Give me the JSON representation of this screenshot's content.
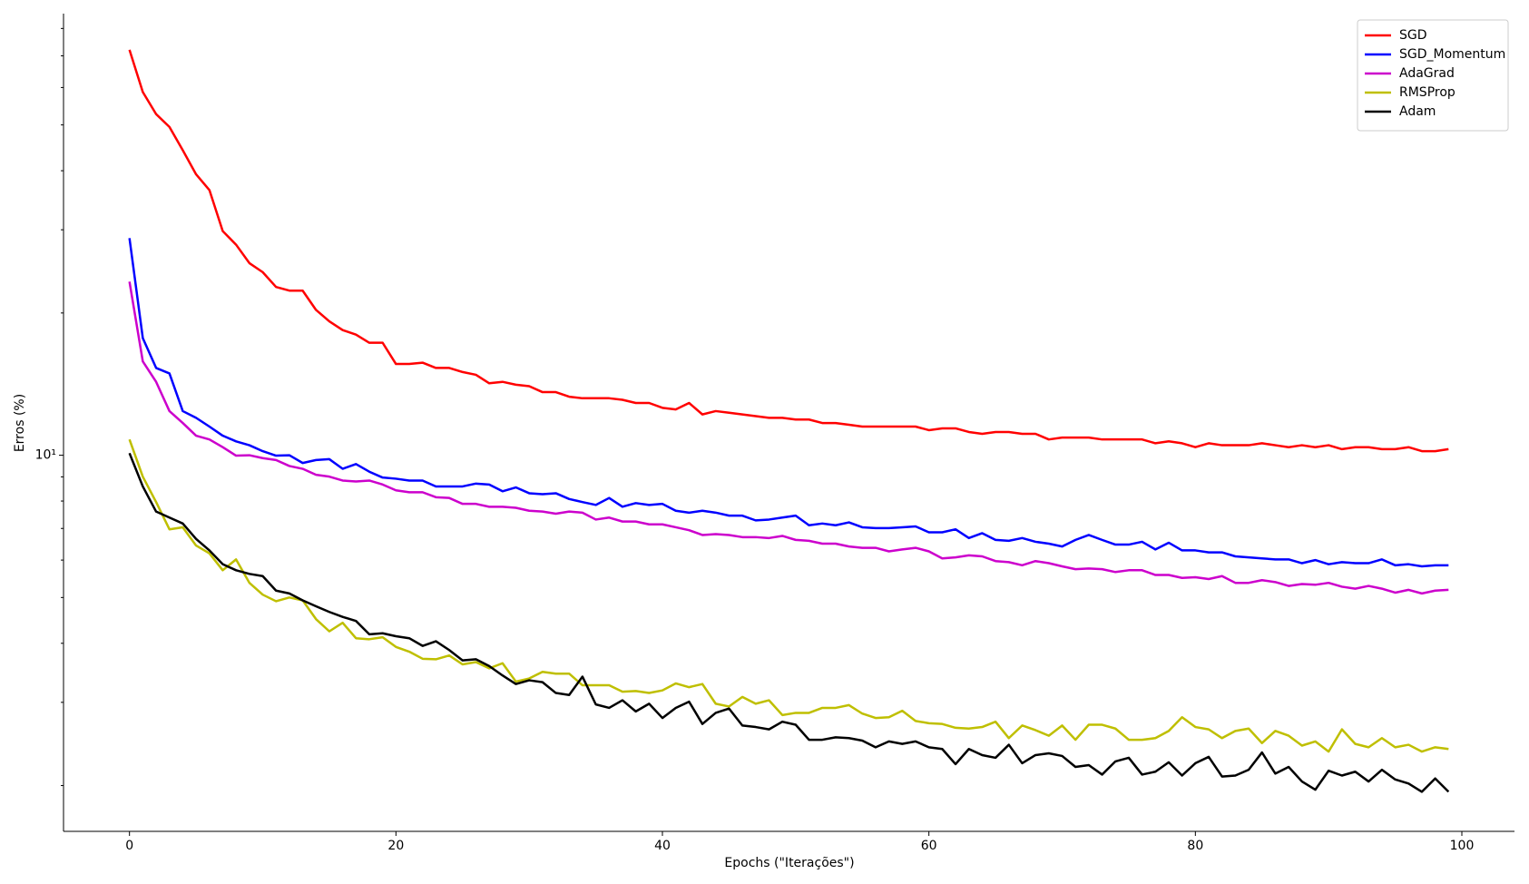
{
  "chart_data": {
    "type": "line",
    "xlabel": "Epochs (\"Iterações\")",
    "ylabel": "Erros (%)",
    "log_y": true,
    "legend": "upper right",
    "xlim": [
      -4.95,
      103.95
    ],
    "xticks": [
      0,
      20,
      40,
      60,
      80,
      100
    ],
    "ylim": [
      1.6,
      86
    ],
    "yticks": [
      {
        "value": 10,
        "label": "10¹"
      }
    ],
    "yminorticks": [
      2,
      3,
      4,
      5,
      6,
      7,
      8,
      9,
      20,
      30,
      40,
      50,
      60,
      70,
      80
    ],
    "x": [
      0,
      1,
      2,
      3,
      4,
      5,
      6,
      7,
      8,
      9,
      10,
      11,
      12,
      13,
      14,
      15,
      16,
      17,
      18,
      19,
      20,
      21,
      22,
      23,
      24,
      25,
      26,
      27,
      28,
      29,
      30,
      31,
      32,
      33,
      34,
      35,
      36,
      37,
      38,
      39,
      40,
      41,
      42,
      43,
      44,
      45,
      46,
      47,
      48,
      49,
      50,
      51,
      52,
      53,
      54,
      55,
      56,
      57,
      58,
      59,
      60,
      61,
      62,
      63,
      64,
      65,
      66,
      67,
      68,
      69,
      70,
      71,
      72,
      73,
      74,
      75,
      76,
      77,
      78,
      79,
      80,
      81,
      82,
      83,
      84,
      85,
      86,
      87,
      88,
      89,
      90,
      91,
      92,
      93,
      94,
      95,
      96,
      97,
      98,
      99
    ],
    "series": [
      {
        "name": "SGD",
        "color": "#ff0000",
        "values": [
          72.1,
          58.7,
          52.7,
          49.5,
          44.2,
          39.3,
          36.4,
          29.8,
          27.9,
          25.5,
          24.4,
          22.7,
          22.3,
          22.3,
          20.3,
          19.2,
          18.4,
          18.0,
          17.3,
          17.3,
          15.6,
          15.6,
          15.7,
          15.3,
          15.3,
          15.0,
          14.8,
          14.2,
          14.3,
          14.1,
          14.0,
          13.6,
          13.6,
          13.3,
          13.2,
          13.2,
          13.2,
          13.1,
          12.9,
          12.9,
          12.6,
          12.5,
          12.9,
          12.2,
          12.4,
          12.3,
          12.2,
          12.1,
          12.0,
          12.0,
          11.9,
          11.9,
          11.7,
          11.7,
          11.6,
          11.5,
          11.5,
          11.5,
          11.5,
          11.5,
          11.3,
          11.4,
          11.4,
          11.2,
          11.1,
          11.2,
          11.2,
          11.1,
          11.1,
          10.8,
          10.9,
          10.9,
          10.9,
          10.8,
          10.8,
          10.8,
          10.8,
          10.6,
          10.7,
          10.6,
          10.4,
          10.6,
          10.5,
          10.5,
          10.5,
          10.6,
          10.5,
          10.4,
          10.5,
          10.4,
          10.5,
          10.3,
          10.4,
          10.4,
          10.3,
          10.3,
          10.4,
          10.2,
          10.2,
          10.3
        ]
      },
      {
        "name": "SGD_Momentum",
        "color": "#0000ff",
        "values": [
          28.8,
          17.7,
          15.3,
          14.9,
          12.4,
          12.0,
          11.5,
          11.0,
          10.7,
          10.5,
          10.2,
          9.98,
          10.0,
          9.63,
          9.77,
          9.81,
          9.36,
          9.58,
          9.23,
          8.97,
          8.92,
          8.84,
          8.84,
          8.59,
          8.59,
          8.59,
          8.71,
          8.67,
          8.39,
          8.55,
          8.31,
          8.27,
          8.31,
          8.08,
          7.96,
          7.85,
          8.12,
          7.78,
          7.92,
          7.85,
          7.89,
          7.63,
          7.56,
          7.63,
          7.56,
          7.45,
          7.45,
          7.28,
          7.31,
          7.38,
          7.45,
          7.11,
          7.17,
          7.11,
          7.21,
          7.04,
          7.01,
          7.01,
          7.04,
          7.07,
          6.87,
          6.87,
          6.97,
          6.68,
          6.84,
          6.62,
          6.59,
          6.68,
          6.56,
          6.5,
          6.41,
          6.62,
          6.78,
          6.62,
          6.47,
          6.47,
          6.56,
          6.32,
          6.53,
          6.29,
          6.29,
          6.23,
          6.23,
          6.11,
          6.08,
          6.05,
          6.02,
          6.02,
          5.91,
          6.0,
          5.88,
          5.94,
          5.91,
          5.91,
          6.02,
          5.85,
          5.88,
          5.82,
          5.85,
          5.85
        ]
      },
      {
        "name": "AdaGrad",
        "color": "#cc00cc",
        "values": [
          23.3,
          15.8,
          14.3,
          12.4,
          11.7,
          11.0,
          10.8,
          10.4,
          9.98,
          10.0,
          9.86,
          9.77,
          9.49,
          9.36,
          9.09,
          9.01,
          8.84,
          8.8,
          8.84,
          8.67,
          8.43,
          8.35,
          8.35,
          8.15,
          8.12,
          7.89,
          7.89,
          7.78,
          7.78,
          7.74,
          7.63,
          7.6,
          7.52,
          7.6,
          7.56,
          7.31,
          7.38,
          7.24,
          7.24,
          7.14,
          7.14,
          7.04,
          6.94,
          6.78,
          6.81,
          6.78,
          6.71,
          6.71,
          6.68,
          6.75,
          6.62,
          6.59,
          6.5,
          6.5,
          6.41,
          6.37,
          6.37,
          6.26,
          6.32,
          6.37,
          6.26,
          6.05,
          6.08,
          6.14,
          6.11,
          5.97,
          5.94,
          5.85,
          5.97,
          5.91,
          5.82,
          5.74,
          5.76,
          5.74,
          5.66,
          5.71,
          5.71,
          5.58,
          5.58,
          5.5,
          5.52,
          5.47,
          5.55,
          5.37,
          5.37,
          5.44,
          5.39,
          5.29,
          5.34,
          5.32,
          5.37,
          5.27,
          5.22,
          5.29,
          5.22,
          5.12,
          5.19,
          5.1,
          5.17,
          5.19
        ]
      },
      {
        "name": "RMSProp",
        "color": "#bfbf00",
        "values": [
          10.8,
          9.01,
          7.96,
          6.97,
          7.04,
          6.44,
          6.2,
          5.71,
          6.02,
          5.37,
          5.07,
          4.91,
          5.0,
          4.93,
          4.5,
          4.24,
          4.42,
          4.1,
          4.08,
          4.12,
          3.93,
          3.84,
          3.71,
          3.7,
          3.77,
          3.61,
          3.65,
          3.54,
          3.63,
          3.32,
          3.37,
          3.48,
          3.45,
          3.45,
          3.26,
          3.26,
          3.26,
          3.16,
          3.17,
          3.14,
          3.18,
          3.29,
          3.23,
          3.28,
          2.98,
          2.94,
          3.08,
          2.98,
          3.03,
          2.82,
          2.85,
          2.85,
          2.92,
          2.92,
          2.96,
          2.84,
          2.78,
          2.79,
          2.88,
          2.74,
          2.71,
          2.7,
          2.65,
          2.64,
          2.66,
          2.73,
          2.52,
          2.68,
          2.62,
          2.55,
          2.68,
          2.5,
          2.69,
          2.69,
          2.64,
          2.5,
          2.5,
          2.52,
          2.61,
          2.79,
          2.66,
          2.63,
          2.52,
          2.61,
          2.64,
          2.46,
          2.61,
          2.55,
          2.43,
          2.48,
          2.36,
          2.63,
          2.45,
          2.41,
          2.52,
          2.41,
          2.44,
          2.36,
          2.41,
          2.39
        ]
      },
      {
        "name": "Adam",
        "color": "#000000",
        "values": [
          10.1,
          8.59,
          7.6,
          7.38,
          7.17,
          6.65,
          6.29,
          5.88,
          5.71,
          5.61,
          5.55,
          5.17,
          5.1,
          4.93,
          4.79,
          4.66,
          4.55,
          4.46,
          4.18,
          4.2,
          4.14,
          4.1,
          3.95,
          4.04,
          3.87,
          3.68,
          3.7,
          3.58,
          3.42,
          3.28,
          3.34,
          3.31,
          3.14,
          3.11,
          3.4,
          2.97,
          2.92,
          3.03,
          2.87,
          2.98,
          2.78,
          2.92,
          3.01,
          2.7,
          2.85,
          2.91,
          2.68,
          2.66,
          2.63,
          2.73,
          2.69,
          2.5,
          2.5,
          2.53,
          2.52,
          2.49,
          2.41,
          2.48,
          2.45,
          2.48,
          2.41,
          2.39,
          2.22,
          2.39,
          2.32,
          2.29,
          2.44,
          2.23,
          2.32,
          2.34,
          2.31,
          2.19,
          2.21,
          2.11,
          2.25,
          2.29,
          2.11,
          2.14,
          2.24,
          2.1,
          2.23,
          2.3,
          2.09,
          2.1,
          2.16,
          2.35,
          2.12,
          2.19,
          2.04,
          1.96,
          2.15,
          2.1,
          2.14,
          2.04,
          2.16,
          2.06,
          2.02,
          1.94,
          2.07,
          1.94
        ]
      }
    ]
  }
}
